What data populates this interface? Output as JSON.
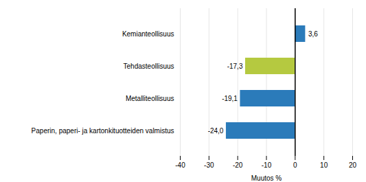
{
  "chart_data": {
    "type": "bar",
    "orientation": "horizontal",
    "categories": [
      "Paperin, paperi- ja kartonkituotteiden valmistus",
      "Metalliteollisuus",
      "Tehdasteollisuus",
      "Kemianteollisuus"
    ],
    "values": [
      -24.0,
      -19.1,
      -17.3,
      3.6
    ],
    "value_labels": [
      "-24,0",
      "-19,1",
      "-17,3",
      "3,6"
    ],
    "colors": [
      "#2b7bba",
      "#2b7bba",
      "#b5c940",
      "#2b7bba"
    ],
    "data_labels": true,
    "xlabel": "Muutos %",
    "xlim": [
      -40,
      20
    ],
    "xticks": [
      -40,
      -30,
      -20,
      -10,
      0,
      10,
      20
    ],
    "grid": true
  }
}
